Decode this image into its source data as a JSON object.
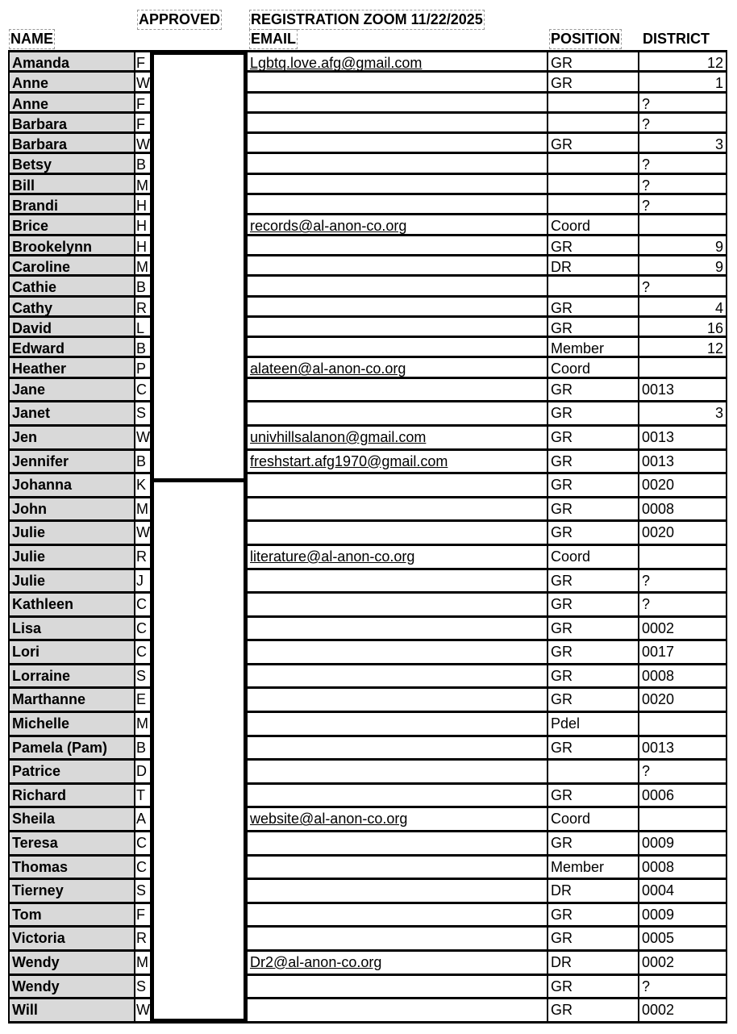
{
  "header": {
    "name": "NAME",
    "approved": "APPROVED",
    "registration": "REGISTRATION ZOOM 11/22/2025",
    "email": "EMAIL",
    "position": "POSITION",
    "district": "DISTRICT"
  },
  "rows": [
    {
      "name": "Amanda",
      "initial": "F",
      "email": "Lgbtq.love.afg@gmail.com",
      "position": "GR",
      "district": "12"
    },
    {
      "name": "Anne",
      "initial": "W",
      "email": "",
      "position": "GR",
      "district": "1"
    },
    {
      "name": "Anne",
      "initial": "F",
      "email": "",
      "position": "",
      "district": "?"
    },
    {
      "name": "Barbara",
      "initial": "F",
      "email": "",
      "position": "",
      "district": "?"
    },
    {
      "name": "Barbara",
      "initial": "W",
      "email": "",
      "position": "GR",
      "district": "3"
    },
    {
      "name": "Betsy",
      "initial": "B",
      "email": "",
      "position": "",
      "district": "?"
    },
    {
      "name": "Bill",
      "initial": "M",
      "email": "",
      "position": "",
      "district": "?"
    },
    {
      "name": "Brandi",
      "initial": "H",
      "email": "",
      "position": "",
      "district": "?"
    },
    {
      "name": "Brice",
      "initial": "H",
      "email": "records@al-anon-co.org",
      "position": "Coord",
      "district": ""
    },
    {
      "name": "Brookelynn",
      "initial": "H",
      "email": "",
      "position": "GR",
      "district": "9"
    },
    {
      "name": "Caroline",
      "initial": "M",
      "email": "",
      "position": "DR",
      "district": "9"
    },
    {
      "name": "Cathie",
      "initial": "B",
      "email": "",
      "position": "",
      "district": "?"
    },
    {
      "name": "Cathy",
      "initial": "R",
      "email": "",
      "position": "GR",
      "district": "4"
    },
    {
      "name": "David",
      "initial": "L",
      "email": "",
      "position": "GR",
      "district": "16"
    },
    {
      "name": "Edward",
      "initial": "B",
      "email": "",
      "position": "Member",
      "district": "12"
    },
    {
      "name": "Heather",
      "initial": "P",
      "email": "alateen@al-anon-co.org",
      "position": "Coord",
      "district": ""
    },
    {
      "name": "Jane",
      "initial": "C",
      "email": "",
      "position": "GR",
      "district": "0013"
    },
    {
      "name": "Janet",
      "initial": "S",
      "email": "",
      "position": "GR",
      "district": "3"
    },
    {
      "name": "Jen",
      "initial": "W",
      "email": "univhillsalanon@gmail.com",
      "position": "GR",
      "district": "0013"
    },
    {
      "name": "Jennifer",
      "initial": "B",
      "email": "freshstart.afg1970@gmail.com",
      "position": "GR",
      "district": "0013"
    },
    {
      "name": "Johanna",
      "initial": "K",
      "email": "",
      "position": "GR",
      "district": "0020"
    },
    {
      "name": "John",
      "initial": "M",
      "email": "",
      "position": "GR",
      "district": "0008"
    },
    {
      "name": "Julie",
      "initial": " W",
      "email": "",
      "position": "GR",
      "district": "0020"
    },
    {
      "name": "Julie",
      "initial": "R",
      "email": "literature@al-anon-co.org",
      "position": "Coord",
      "district": ""
    },
    {
      "name": "Julie",
      "initial": "J",
      "email": "",
      "position": "GR",
      "district": "?"
    },
    {
      "name": "Kathleen",
      "initial": "C",
      "email": "",
      "position": "GR",
      "district": "?"
    },
    {
      "name": "Lisa",
      "initial": "C",
      "email": "",
      "position": "GR",
      "district": "0002"
    },
    {
      "name": "Lori",
      "initial": "C",
      "email": "",
      "position": "GR",
      "district": "0017"
    },
    {
      "name": "Lorraine",
      "initial": "S",
      "email": "",
      "position": "GR",
      "district": "0008"
    },
    {
      "name": "Marthanne",
      "initial": "E",
      "email": "",
      "position": "GR",
      "district": "0020"
    },
    {
      "name": "Michelle",
      "initial": "M",
      "email": "",
      "position": "Pdel",
      "district": ""
    },
    {
      "name": "Pamela (Pam)",
      "initial": "B",
      "email": "",
      "position": "GR",
      "district": "0013"
    },
    {
      "name": "Patrice",
      "initial": "D",
      "email": "",
      "position": "",
      "district": "?"
    },
    {
      "name": "Richard",
      "initial": "T",
      "email": "",
      "position": "GR",
      "district": "0006"
    },
    {
      "name": "Sheila",
      "initial": "A",
      "email": "website@al-anon-co.org",
      "position": "Coord",
      "district": ""
    },
    {
      "name": "Teresa",
      "initial": "C",
      "email": "",
      "position": "GR",
      "district": "0009"
    },
    {
      "name": "Thomas",
      "initial": "C",
      "email": "",
      "position": "Member",
      "district": "0008"
    },
    {
      "name": "Tierney",
      "initial": "S",
      "email": "",
      "position": "DR",
      "district": "0004"
    },
    {
      "name": "Tom",
      "initial": "F",
      "email": "",
      "position": "GR",
      "district": "0009"
    },
    {
      "name": "Victoria",
      "initial": "R",
      "email": "",
      "position": "GR",
      "district": "0005"
    },
    {
      "name": "Wendy",
      "initial": "M",
      "email": "Dr2@al-anon-co.org",
      "position": "DR",
      "district": "0002"
    },
    {
      "name": "Wendy",
      "initial": "S",
      "email": "",
      "position": "GR",
      "district": "?"
    },
    {
      "name": "Will",
      "initial": "W",
      "email": "",
      "position": "GR",
      "district": "0002"
    }
  ]
}
